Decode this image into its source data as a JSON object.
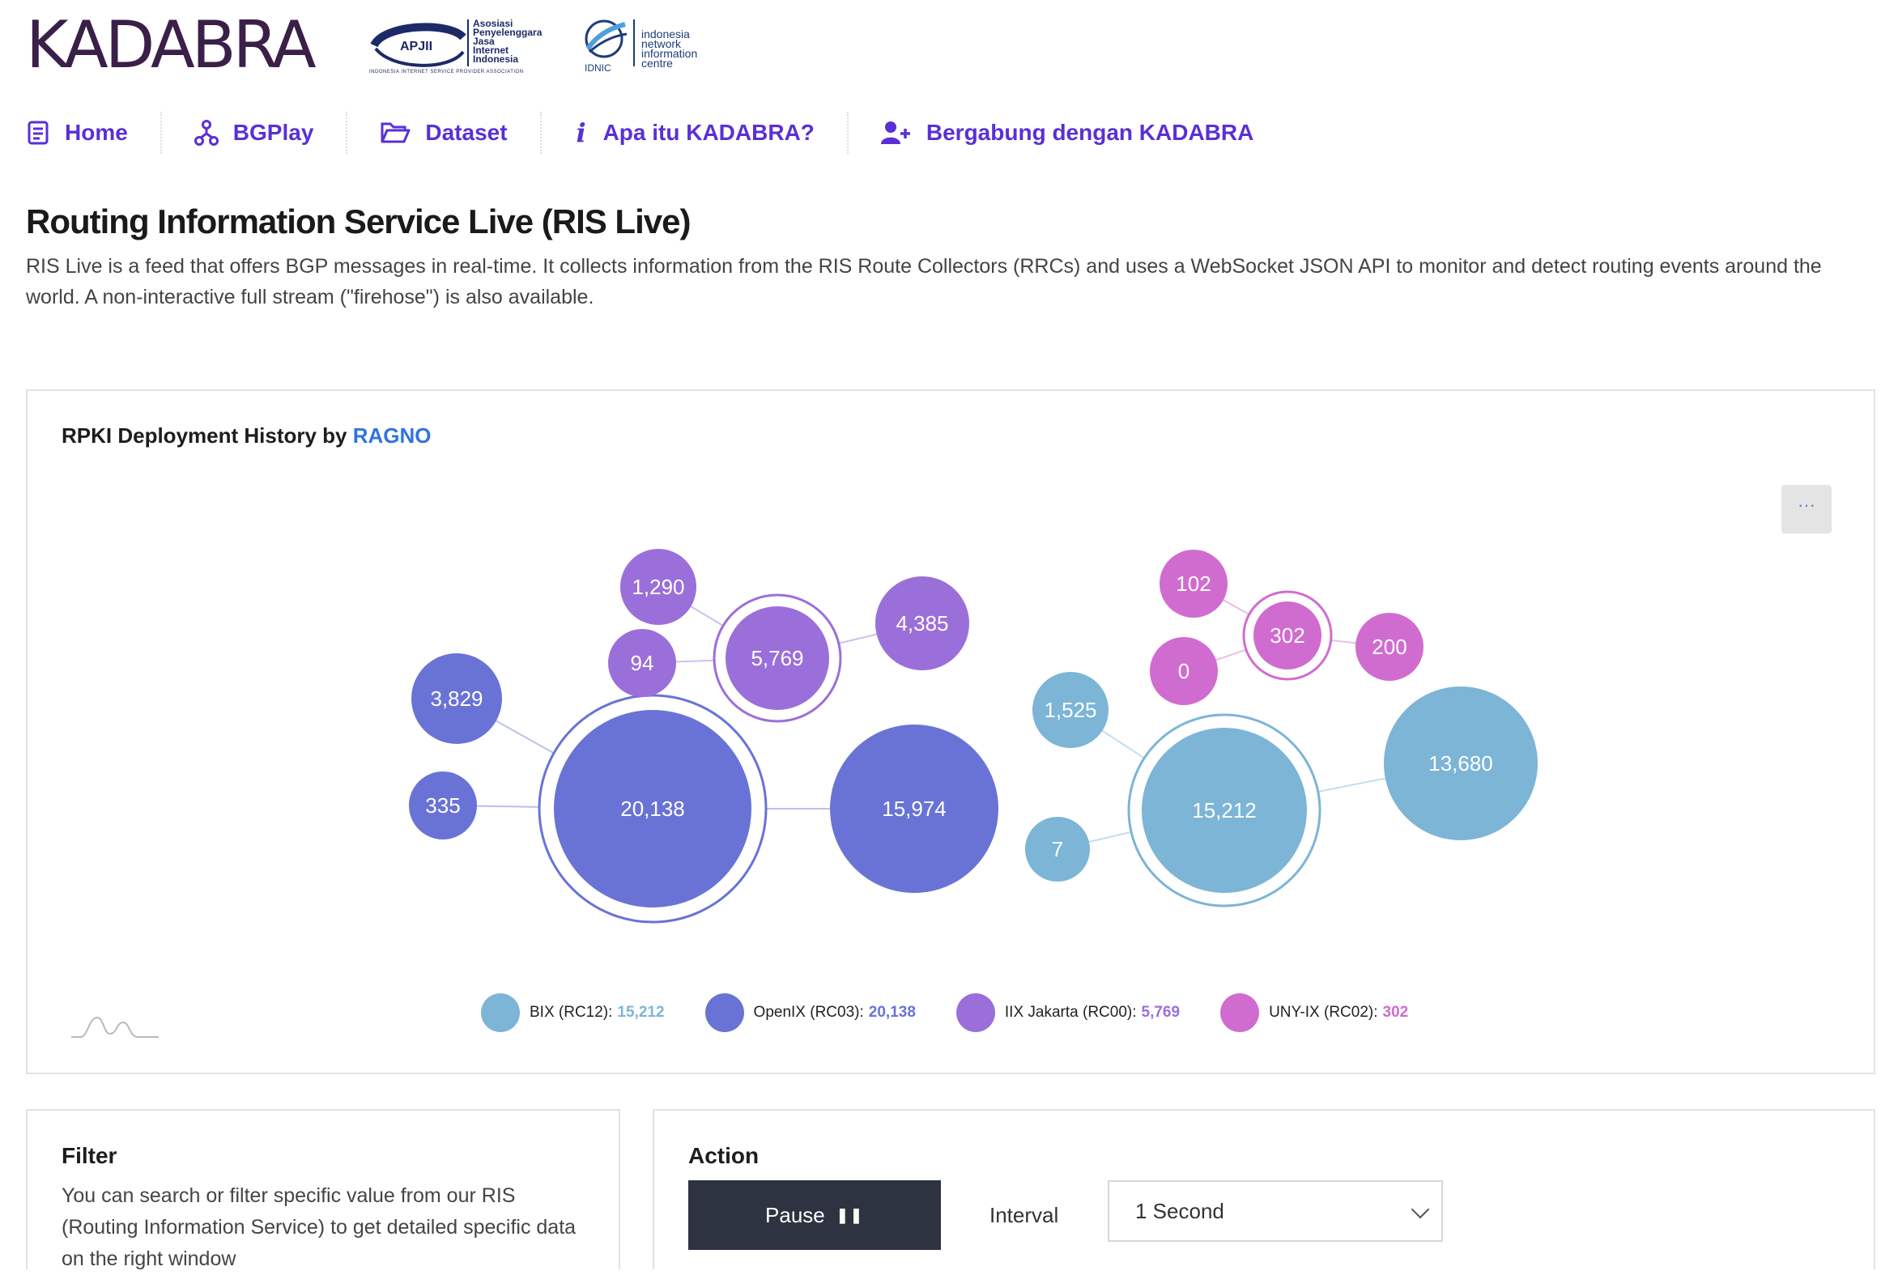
{
  "header": {
    "brand": "KADABRA",
    "apjii": {
      "badge": "APJII",
      "lines": [
        "Asosiasi",
        "Penyelenggara",
        "Jasa",
        "Internet",
        "Indonesia"
      ],
      "tagline": "INDONESIA INTERNET SERVICE PROVIDER ASSOCIATION"
    },
    "idnic": {
      "badge": "IDNIC",
      "lines": [
        "indonesia",
        "network",
        "information",
        "centre"
      ]
    }
  },
  "nav": {
    "items": [
      {
        "label": "Home",
        "icon": "document-list-icon"
      },
      {
        "label": "BGPlay",
        "icon": "network-nodes-icon"
      },
      {
        "label": "Dataset",
        "icon": "folder-open-icon"
      },
      {
        "label": "Apa itu KADABRA?",
        "icon": "info-icon"
      },
      {
        "label": "Bergabung dengan KADABRA",
        "icon": "user-plus-icon"
      }
    ]
  },
  "page": {
    "title": "Routing Information Service Live (RIS Live)",
    "description": "RIS Live is a feed that offers BGP messages in real-time. It collects information from the RIS Route Collectors (RRCs) and uses a WebSocket JSON API to monitor and detect routing events around the world. A non-interactive full stream (\"firehose\") is also available."
  },
  "chart": {
    "title_prefix": "RPKI Deployment History by",
    "title_link": "RAGNO",
    "menu_label": "···",
    "legend": [
      {
        "label": "BIX (RC12):",
        "value": "15,212",
        "color": "#7cb5d6"
      },
      {
        "label": "OpenIX (RC03):",
        "value": "20,138",
        "color": "#6973d6"
      },
      {
        "label": "IIX Jakarta (RC00):",
        "value": "5,769",
        "color": "#9b6fd9"
      },
      {
        "label": "UNY-IX (RC02):",
        "value": "302",
        "color": "#d06ccf"
      }
    ]
  },
  "chart_data": {
    "type": "bubble-network",
    "series": [
      {
        "name": "OpenIX (RC03)",
        "color": "#6973d6",
        "center": 20138,
        "children": [
          3829,
          335,
          15974
        ]
      },
      {
        "name": "IIX Jakarta (RC00)",
        "color": "#9b6fd9",
        "center": 5769,
        "children": [
          1290,
          94,
          4385
        ]
      },
      {
        "name": "BIX (RC12)",
        "color": "#7cb5d6",
        "center": 15212,
        "children": [
          1525,
          7,
          13680
        ]
      },
      {
        "name": "UNY-IX (RC02)",
        "color": "#d06ccf",
        "center": 302,
        "children": [
          102,
          0,
          200
        ]
      }
    ]
  },
  "filter": {
    "title": "Filter",
    "text": "You can search or filter specific value from our RIS (Routing Information Service) to get detailed specific data on the right window"
  },
  "action": {
    "title": "Action",
    "pause_label": "Pause",
    "interval_label": "Interval",
    "interval_value": "1 Second"
  }
}
